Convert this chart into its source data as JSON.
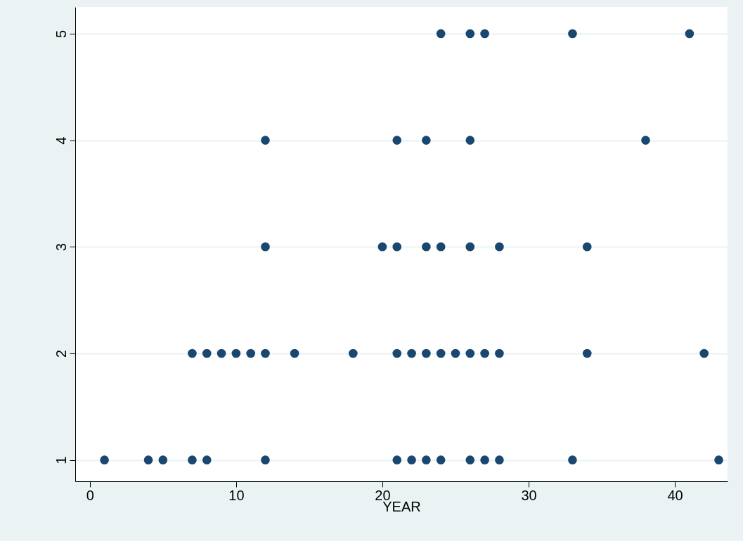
{
  "chart_data": {
    "type": "scatter",
    "xlabel": "YEAR",
    "x": [
      24,
      26,
      27,
      33,
      41,
      12,
      21,
      23,
      26,
      38,
      12,
      20,
      21,
      23,
      24,
      26,
      28,
      34,
      7,
      8,
      9,
      10,
      11,
      12,
      14,
      18,
      21,
      22,
      23,
      24,
      25,
      26,
      27,
      28,
      34,
      42,
      1,
      4,
      5,
      7,
      8,
      12,
      21,
      22,
      23,
      24,
      26,
      27,
      28,
      33,
      43
    ],
    "series": [
      {
        "color": "#1a476f",
        "values": [
          5,
          5,
          5,
          5,
          5,
          4,
          4,
          4,
          4,
          4,
          3,
          3,
          3,
          3,
          3,
          3,
          3,
          3,
          2,
          2,
          2,
          2,
          2,
          2,
          2,
          2,
          2,
          2,
          2,
          2,
          2,
          2,
          2,
          2,
          2,
          2,
          1,
          1,
          1,
          1,
          1,
          1,
          1,
          1,
          1,
          1,
          1,
          1,
          1,
          1,
          1
        ]
      }
    ],
    "xlim": [
      -1,
      43.6
    ],
    "xticks": [
      0,
      10,
      20,
      30,
      40
    ],
    "ylim": [
      0.8,
      5.25
    ],
    "yticks": [
      1,
      2,
      3,
      4,
      5
    ],
    "grid": "y",
    "marker": "circle"
  }
}
